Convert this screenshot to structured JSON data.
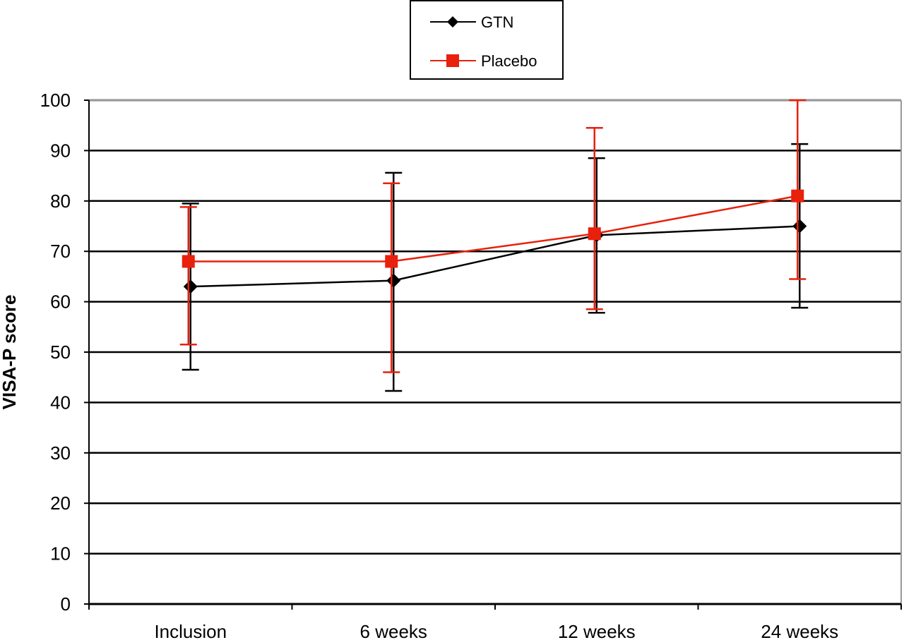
{
  "chart_data": {
    "type": "line",
    "ylabel": "VISA-P score",
    "xlabel": "",
    "ylim": [
      0,
      100
    ],
    "yticks": [
      0,
      10,
      20,
      30,
      40,
      50,
      60,
      70,
      80,
      90,
      100
    ],
    "grid": true,
    "legend": {
      "placement": "top-center"
    },
    "categories": [
      "Inclusion",
      "6 weeks",
      "12 weeks",
      "24 weeks"
    ],
    "series": [
      {
        "name": "GTN",
        "color": "#000000",
        "marker": "diamond",
        "values": [
          63,
          64.2,
          73.2,
          75
        ],
        "error_low": [
          46.5,
          42.3,
          57.8,
          58.8
        ],
        "error_high": [
          79.5,
          85.6,
          88.5,
          91.3
        ]
      },
      {
        "name": "Placebo",
        "color": "#e8200c",
        "marker": "square",
        "values": [
          68,
          68,
          73.5,
          81
        ],
        "error_low": [
          51.5,
          46,
          58.5,
          64.5
        ],
        "error_high": [
          78.8,
          83.5,
          94.5,
          100
        ]
      }
    ]
  }
}
